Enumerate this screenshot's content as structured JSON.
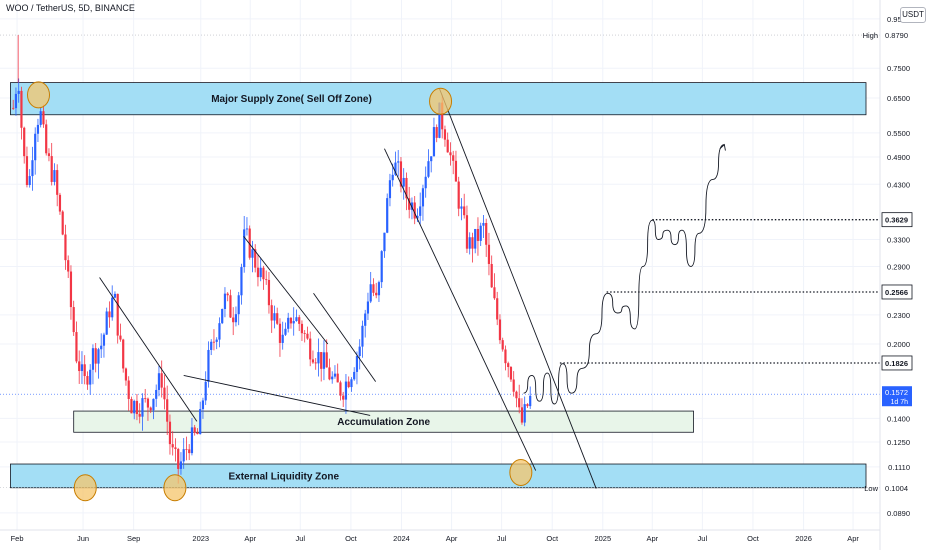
{
  "header": {
    "title": "WOO / TetherUS, 5D, BINANCE",
    "currency": "USDT"
  },
  "colors": {
    "up": "#2962ff",
    "down": "#f23645",
    "zone_blue": "#a3def5",
    "zone_green": "#e8f5e9",
    "circle": "#f5c56b",
    "line": "#131722"
  },
  "chart_data": {
    "type": "candlestick",
    "y_scale": "log",
    "ylim": [
      0.082,
      1.04
    ],
    "x_range": [
      "2022-01-01",
      "2026-05-20"
    ],
    "price_ticks": [
      0.95,
      0.75,
      0.65,
      0.55,
      0.49,
      0.43,
      0.33,
      0.29,
      0.23,
      0.2,
      0.14,
      0.125,
      0.111,
      0.089
    ],
    "time_ticks": [
      {
        "label": "Feb",
        "date": "2022-02-01"
      },
      {
        "label": "Jun",
        "date": "2022-06-01"
      },
      {
        "label": "Sep",
        "date": "2022-09-01"
      },
      {
        "label": "2023",
        "date": "2023-01-01"
      },
      {
        "label": "Apr",
        "date": "2023-04-01"
      },
      {
        "label": "Jul",
        "date": "2023-07-01"
      },
      {
        "label": "Oct",
        "date": "2023-10-01"
      },
      {
        "label": "2024",
        "date": "2024-01-01"
      },
      {
        "label": "Apr",
        "date": "2024-04-01"
      },
      {
        "label": "Jul",
        "date": "2024-07-01"
      },
      {
        "label": "Oct",
        "date": "2024-10-01"
      },
      {
        "label": "2025",
        "date": "2025-01-01"
      },
      {
        "label": "Apr",
        "date": "2025-04-01"
      },
      {
        "label": "Jul",
        "date": "2025-07-01"
      },
      {
        "label": "Oct",
        "date": "2025-10-01"
      },
      {
        "label": "2026",
        "date": "2026-01-01"
      },
      {
        "label": "Apr",
        "date": "2026-04-01"
      }
    ],
    "price_markers": [
      {
        "tag": "High",
        "value": "0.8790",
        "price": 0.879,
        "style": "plain"
      },
      {
        "tag": "",
        "value": "0.3629",
        "price": 0.3629,
        "style": "box"
      },
      {
        "tag": "",
        "value": "0.2566",
        "price": 0.2566,
        "style": "box"
      },
      {
        "tag": "",
        "value": "0.1826",
        "price": 0.1826,
        "style": "box"
      },
      {
        "tag": "Low",
        "value": "0.1004",
        "price": 0.1004,
        "style": "plain"
      }
    ],
    "last_price": {
      "value": "0.1572",
      "countdown": "1d 7h",
      "price": 0.1572
    },
    "zones": [
      {
        "label": "Major Supply Zone( Sell Off Zone)",
        "from": "2022-01-20",
        "to": "2026-05-20",
        "low": 0.6,
        "high": 0.7,
        "color": "zone_blue"
      },
      {
        "label": "Accumulation Zone",
        "from": "2022-05-15",
        "to": "2025-06-15",
        "low": 0.131,
        "high": 0.145,
        "color": "zone_green"
      },
      {
        "label": "External Liquidity Zone",
        "from": "2022-01-20",
        "to": "2026-05-20",
        "low": 0.1004,
        "high": 0.1125,
        "color": "zone_blue"
      }
    ],
    "level_lines": [
      {
        "price": 0.3629,
        "from": "2025-04-01"
      },
      {
        "price": 0.2566,
        "from": "2025-01-08"
      },
      {
        "price": 0.1826,
        "from": "2024-10-15"
      }
    ],
    "circles": [
      {
        "date": "2022-03-12",
        "price": 0.66
      },
      {
        "date": "2024-03-12",
        "price": 0.64
      },
      {
        "date": "2022-06-05",
        "price": 0.1004
      },
      {
        "date": "2022-11-15",
        "price": 0.1004
      },
      {
        "date": "2024-08-05",
        "price": 0.108
      }
    ],
    "trendlines": [
      {
        "from": [
          "2022-07-01",
          0.275
        ],
        "to": [
          "2022-12-25",
          0.138
        ]
      },
      {
        "from": [
          "2022-12-01",
          0.172
        ],
        "to": [
          "2023-11-05",
          0.142
        ]
      },
      {
        "from": [
          "2023-03-20",
          0.335
        ],
        "to": [
          "2023-08-20",
          0.2
        ]
      },
      {
        "from": [
          "2023-07-25",
          0.255
        ],
        "to": [
          "2023-11-15",
          0.167
        ]
      },
      {
        "from": [
          "2023-12-01",
          0.51
        ],
        "to": [
          "2024-09-01",
          0.109
        ]
      },
      {
        "from": [
          "2024-03-10",
          0.68
        ],
        "to": [
          "2024-12-20",
          0.1
        ]
      }
    ],
    "projection": [
      [
        "2024-08-10",
        0.158
      ],
      [
        "2024-08-25",
        0.172
      ],
      [
        "2024-09-08",
        0.152
      ],
      [
        "2024-09-22",
        0.174
      ],
      [
        "2024-10-05",
        0.15
      ],
      [
        "2024-10-20",
        0.182
      ],
      [
        "2024-11-05",
        0.158
      ],
      [
        "2024-11-25",
        0.178
      ],
      [
        "2024-12-20",
        0.21
      ],
      [
        "2025-01-10",
        0.255
      ],
      [
        "2025-01-28",
        0.232
      ],
      [
        "2025-02-12",
        0.24
      ],
      [
        "2025-02-28",
        0.215
      ],
      [
        "2025-03-15",
        0.29
      ],
      [
        "2025-04-01",
        0.362
      ],
      [
        "2025-04-12",
        0.33
      ],
      [
        "2025-04-28",
        0.345
      ],
      [
        "2025-05-12",
        0.322
      ],
      [
        "2025-05-25",
        0.345
      ],
      [
        "2025-06-10",
        0.29
      ],
      [
        "2025-06-25",
        0.34
      ],
      [
        "2025-07-20",
        0.44
      ],
      [
        "2025-08-10",
        0.52
      ]
    ],
    "candles_note": "5-day candles, price path approximated from the chart",
    "candles_anchors": [
      [
        "2022-01-25",
        0.62
      ],
      [
        "2022-02-03",
        0.74
      ],
      [
        "2022-02-12",
        0.5
      ],
      [
        "2022-02-22",
        0.42
      ],
      [
        "2022-03-05",
        0.57
      ],
      [
        "2022-03-15",
        0.61
      ],
      [
        "2022-03-25",
        0.5
      ],
      [
        "2022-04-10",
        0.44
      ],
      [
        "2022-04-25",
        0.34
      ],
      [
        "2022-05-08",
        0.25
      ],
      [
        "2022-05-20",
        0.19
      ],
      [
        "2022-06-03",
        0.165
      ],
      [
        "2022-06-18",
        0.19
      ],
      [
        "2022-07-05",
        0.2
      ],
      [
        "2022-07-20",
        0.24
      ],
      [
        "2022-07-28",
        0.25
      ],
      [
        "2022-08-12",
        0.18
      ],
      [
        "2022-08-28",
        0.15
      ],
      [
        "2022-09-12",
        0.15
      ],
      [
        "2022-09-28",
        0.15
      ],
      [
        "2022-10-10",
        0.16
      ],
      [
        "2022-10-22",
        0.17
      ],
      [
        "2022-11-08",
        0.12
      ],
      [
        "2022-11-22",
        0.11
      ],
      [
        "2022-12-10",
        0.125
      ],
      [
        "2022-12-28",
        0.13
      ],
      [
        "2023-01-12",
        0.18
      ],
      [
        "2023-01-28",
        0.21
      ],
      [
        "2023-02-12",
        0.25
      ],
      [
        "2023-02-28",
        0.23
      ],
      [
        "2023-03-12",
        0.26
      ],
      [
        "2023-03-22",
        0.34
      ],
      [
        "2023-04-08",
        0.3
      ],
      [
        "2023-04-25",
        0.27
      ],
      [
        "2023-05-12",
        0.23
      ],
      [
        "2023-06-01",
        0.2
      ],
      [
        "2023-06-15",
        0.23
      ],
      [
        "2023-07-01",
        0.22
      ],
      [
        "2023-07-15",
        0.2
      ],
      [
        "2023-08-01",
        0.19
      ],
      [
        "2023-08-15",
        0.18
      ],
      [
        "2023-09-01",
        0.165
      ],
      [
        "2023-09-15",
        0.16
      ],
      [
        "2023-10-01",
        0.175
      ],
      [
        "2023-10-18",
        0.2
      ],
      [
        "2023-11-05",
        0.27
      ],
      [
        "2023-11-18",
        0.24
      ],
      [
        "2023-12-01",
        0.35
      ],
      [
        "2023-12-15",
        0.48
      ],
      [
        "2023-12-28",
        0.45
      ],
      [
        "2024-01-12",
        0.4
      ],
      [
        "2024-01-28",
        0.38
      ],
      [
        "2024-02-10",
        0.44
      ],
      [
        "2024-02-25",
        0.52
      ],
      [
        "2024-03-10",
        0.6
      ],
      [
        "2024-03-22",
        0.55
      ],
      [
        "2024-04-05",
        0.45
      ],
      [
        "2024-04-18",
        0.38
      ],
      [
        "2024-05-01",
        0.32
      ],
      [
        "2024-05-15",
        0.33
      ],
      [
        "2024-05-30",
        0.35
      ],
      [
        "2024-06-12",
        0.26
      ],
      [
        "2024-06-25",
        0.22
      ],
      [
        "2024-07-08",
        0.19
      ],
      [
        "2024-07-22",
        0.17
      ],
      [
        "2024-08-05",
        0.135
      ],
      [
        "2024-08-18",
        0.15
      ],
      [
        "2024-08-26",
        0.157
      ]
    ]
  }
}
